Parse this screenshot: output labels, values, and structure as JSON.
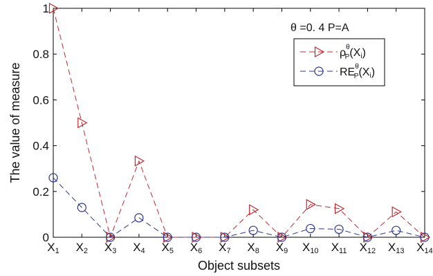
{
  "chart_data": {
    "type": "line",
    "xlabel": "Object subsets",
    "ylabel": "The value of measure",
    "ylim": [
      0,
      1
    ],
    "yticks": [
      "0",
      "0.2",
      "0.4",
      "0.6",
      "0.8",
      "1"
    ],
    "categories": [
      {
        "base": "X",
        "sub": "1"
      },
      {
        "base": "X",
        "sub": "2"
      },
      {
        "base": "X",
        "sub": "3"
      },
      {
        "base": "X",
        "sub": "4"
      },
      {
        "base": "X",
        "sub": "5"
      },
      {
        "base": "X",
        "sub": "6"
      },
      {
        "base": "X",
        "sub": "7"
      },
      {
        "base": "X",
        "sub": "8"
      },
      {
        "base": "X",
        "sub": "9"
      },
      {
        "base": "X",
        "sub": "10"
      },
      {
        "base": "X",
        "sub": "11"
      },
      {
        "base": "X",
        "sub": "12"
      },
      {
        "base": "X",
        "sub": "13"
      },
      {
        "base": "X",
        "sub": "14"
      }
    ],
    "annotation": "θ =0. 4  P=A",
    "legend_position": "top-right",
    "grid": false,
    "series": [
      {
        "id": "rho",
        "name_parts": {
          "base": "ρ",
          "sub": "P",
          "sup": "θ",
          "arg": "(X",
          "arg_sub": "i",
          "arg_close": ")"
        },
        "color": "#c0282d",
        "marker": "triangle-right",
        "line": "dashed",
        "values": [
          1.0,
          0.5,
          0,
          0.333,
          0,
          0,
          0,
          0.12,
          0,
          0.143,
          0.125,
          0,
          0.111,
          0
        ]
      },
      {
        "id": "re",
        "name_parts": {
          "base": "RE",
          "sub": "P",
          "sup": "θ",
          "arg": "(X",
          "arg_sub": "i",
          "arg_close": ")"
        },
        "color": "#2a3590",
        "marker": "circle",
        "line": "dashed",
        "values": [
          0.26,
          0.13,
          0,
          0.085,
          0,
          0,
          0,
          0.03,
          0,
          0.038,
          0.035,
          0,
          0.03,
          0
        ]
      }
    ]
  }
}
